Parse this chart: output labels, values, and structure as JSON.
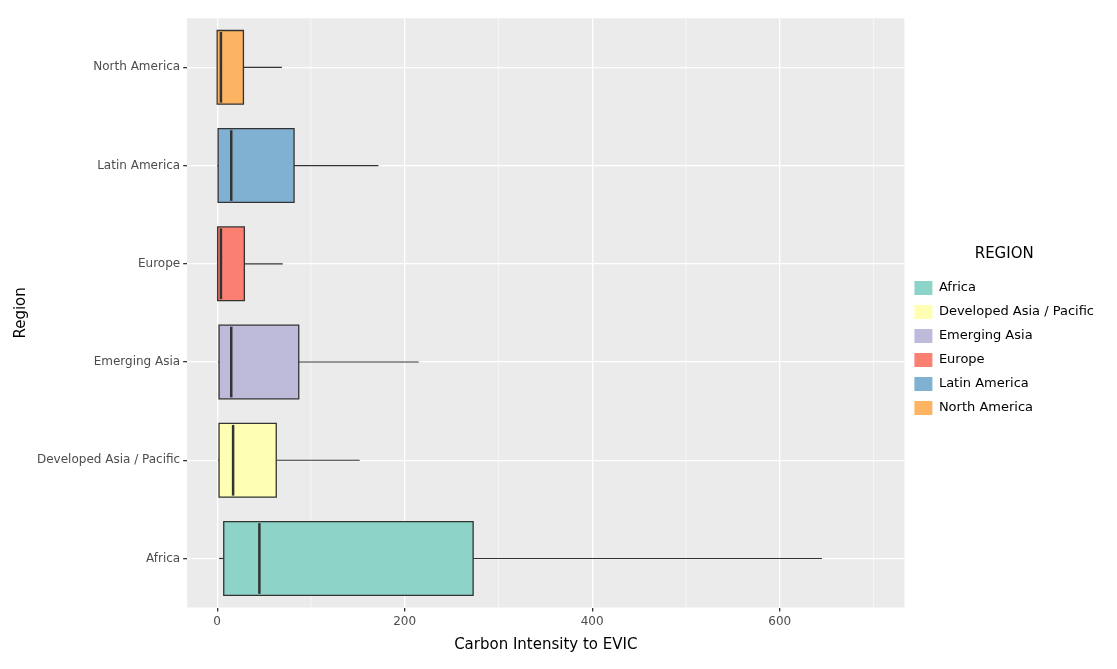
{
  "chart_data": {
    "type": "box",
    "orientation": "horizontal",
    "xlabel": "Carbon Intensity to EVIC",
    "ylabel": "Region",
    "legend_title": "REGION",
    "legend": "right",
    "grid": true,
    "categories": [
      "North America",
      "Latin America",
      "Europe",
      "Emerging Asia",
      "Developed Asia / Pacific",
      "Africa"
    ],
    "series": [
      {
        "name": "Africa",
        "color": "#8dd3c7",
        "boxes": [
          null,
          null,
          null,
          null,
          null,
          {
            "low": 2,
            "q1": 7,
            "median": 45,
            "q3": 273,
            "high": 645
          }
        ]
      },
      {
        "name": "Developed Asia / Pacific",
        "color": "#ffffb3",
        "boxes": [
          null,
          null,
          null,
          null,
          {
            "low": 1,
            "q1": 2,
            "median": 17,
            "q3": 63,
            "high": 152
          },
          null
        ]
      },
      {
        "name": "Emerging Asia",
        "color": "#bebada",
        "boxes": [
          null,
          null,
          null,
          {
            "low": 1,
            "q1": 2,
            "median": 15,
            "q3": 87,
            "high": 215
          },
          null,
          null
        ]
      },
      {
        "name": "Europe",
        "color": "#fb8072",
        "boxes": [
          null,
          null,
          {
            "low": 0,
            "q1": 0.5,
            "median": 4,
            "q3": 29,
            "high": 70
          },
          null,
          null,
          null
        ]
      },
      {
        "name": "Latin America",
        "color": "#80b1d3",
        "boxes": [
          null,
          {
            "low": 0,
            "q1": 1,
            "median": 15,
            "q3": 82,
            "high": 172
          },
          null,
          null,
          null,
          null
        ]
      },
      {
        "name": "North America",
        "color": "#fdb462",
        "boxes": [
          {
            "low": 0,
            "q1": 0,
            "median": 4,
            "q3": 28,
            "high": 69
          },
          null,
          null,
          null,
          null,
          null
        ]
      }
    ],
    "xlim": [
      -32,
      733
    ],
    "xticks": [
      0,
      200,
      400,
      600
    ]
  }
}
